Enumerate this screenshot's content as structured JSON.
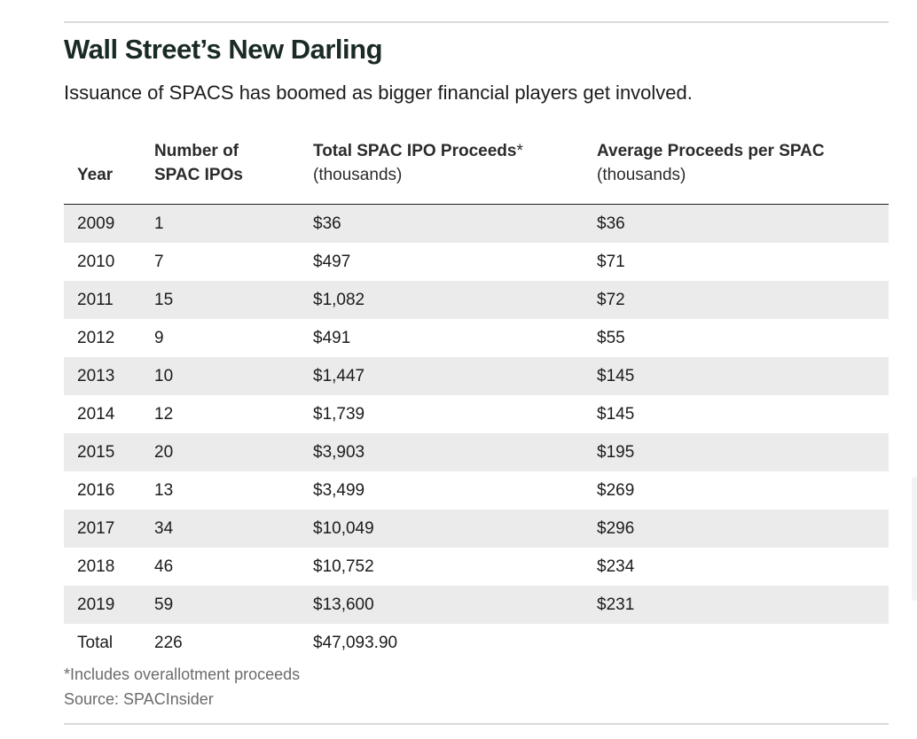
{
  "title": "Wall Street’s New Darling",
  "subtitle": "Issuance of SPACS has boomed as bigger financial players get involved.",
  "columns": {
    "year": "Year",
    "count_line1": "Number of",
    "count_line2": "SPAC IPOs",
    "total_line1": "Total SPAC IPO Proceeds",
    "total_marker": "*",
    "total_line2": "(thousands)",
    "avg_line1": "Average Proceeds per SPAC",
    "avg_line2": "(thousands)"
  },
  "rows": [
    {
      "year": "2009",
      "count": "1",
      "total": "$36",
      "avg": "$36"
    },
    {
      "year": "2010",
      "count": "7",
      "total": "$497",
      "avg": "$71"
    },
    {
      "year": "2011",
      "count": "15",
      "total": "$1,082",
      "avg": "$72"
    },
    {
      "year": "2012",
      "count": "9",
      "total": "$491",
      "avg": "$55"
    },
    {
      "year": "2013",
      "count": "10",
      "total": "$1,447",
      "avg": "$145"
    },
    {
      "year": "2014",
      "count": "12",
      "total": "$1,739",
      "avg": "$145"
    },
    {
      "year": "2015",
      "count": "20",
      "total": "$3,903",
      "avg": "$195"
    },
    {
      "year": "2016",
      "count": "13",
      "total": "$3,499",
      "avg": "$269"
    },
    {
      "year": "2017",
      "count": "34",
      "total": "$10,049",
      "avg": "$296"
    },
    {
      "year": "2018",
      "count": "46",
      "total": "$10,752",
      "avg": "$234"
    },
    {
      "year": "2019",
      "count": "59",
      "total": "$13,600",
      "avg": "$231"
    },
    {
      "year": "Total",
      "count": "226",
      "total": "$47,093.90",
      "avg": ""
    }
  ],
  "footnote": "*Includes overallotment proceeds",
  "source": "Source: SPACInsider",
  "colors": {
    "row_shade": "#ebebeb",
    "title": "#1a2a24",
    "note": "#6b6b6b"
  }
}
